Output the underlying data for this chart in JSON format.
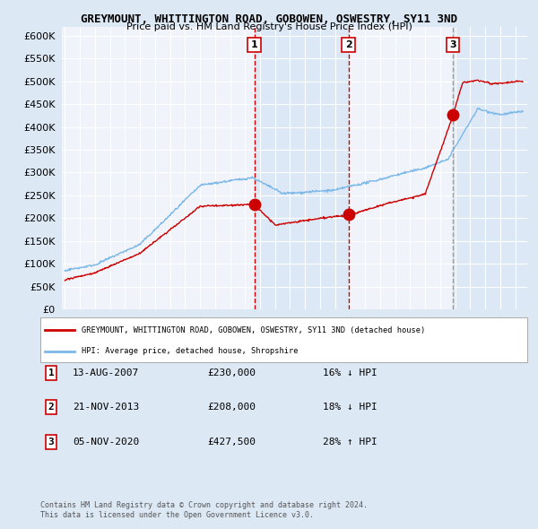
{
  "title": "GREYMOUNT, WHITTINGTON ROAD, GOBOWEN, OSWESTRY, SY11 3ND",
  "subtitle": "Price paid vs. HM Land Registry's House Price Index (HPI)",
  "ylim": [
    0,
    620000
  ],
  "yticks": [
    0,
    50000,
    100000,
    150000,
    200000,
    250000,
    300000,
    350000,
    400000,
    450000,
    500000,
    550000,
    600000
  ],
  "bg_color": "#dde8f5",
  "plot_bg_white": "#f0f4fa",
  "plot_bg_blue": "#dce8f5",
  "red_color": "#cc0000",
  "blue_color": "#7bb8e8",
  "vline_color_red": "#cc0000",
  "vline_color_gray": "#999999",
  "legend_red": "GREYMOUNT, WHITTINGTON ROAD, GOBOWEN, OSWESTRY, SY11 3ND (detached house)",
  "legend_blue": "HPI: Average price, detached house, Shropshire",
  "transactions": [
    {
      "label": "1",
      "date": "13-AUG-2007",
      "price": 230000,
      "rel": "16% ↓ HPI",
      "year": 2007.62
    },
    {
      "label": "2",
      "date": "21-NOV-2013",
      "price": 208000,
      "rel": "18% ↓ HPI",
      "year": 2013.89
    },
    {
      "label": "3",
      "date": "05-NOV-2020",
      "price": 427500,
      "rel": "28% ↑ HPI",
      "year": 2020.85
    }
  ],
  "footer_line1": "Contains HM Land Registry data © Crown copyright and database right 2024.",
  "footer_line2": "This data is licensed under the Open Government Licence v3.0."
}
